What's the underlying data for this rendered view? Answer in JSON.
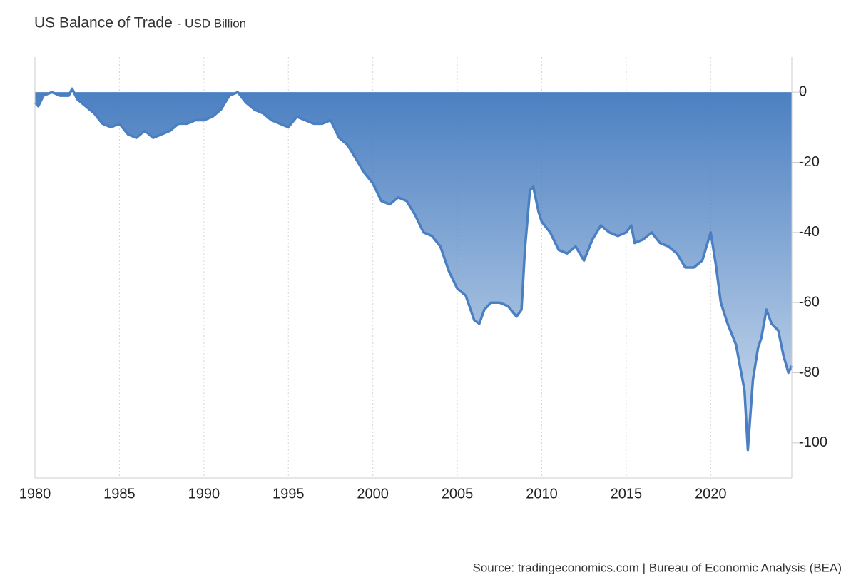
{
  "chart_data": {
    "type": "area",
    "title": "US Balance of Trade",
    "subtitle": "- USD Billion",
    "source": "Source: tradingeconomics.com | Bureau of Economic Analysis (BEA)",
    "color": "#4a7fc1",
    "xlim": [
      1980,
      2024.8
    ],
    "xticks": [
      1980,
      1985,
      1990,
      1995,
      2000,
      2005,
      2010,
      2015,
      2020
    ],
    "ylim": [
      -110,
      10
    ],
    "yticks": [
      0,
      -20,
      -40,
      -60,
      -80,
      -100
    ],
    "grid": true,
    "x": [
      1980.0,
      1980.2,
      1980.5,
      1981,
      1981.5,
      1982,
      1982.2,
      1982.5,
      1983,
      1983.5,
      1984,
      1984.5,
      1985,
      1985.5,
      1986,
      1986.5,
      1987,
      1987.5,
      1988,
      1988.5,
      1989,
      1989.5,
      1990,
      1990.5,
      1991,
      1991.5,
      1992,
      1992.5,
      1993,
      1993.5,
      1994,
      1994.5,
      1995,
      1995.5,
      1996,
      1996.5,
      1997,
      1997.5,
      1998,
      1998.5,
      1999,
      1999.5,
      2000,
      2000.5,
      2001,
      2001.5,
      2002,
      2002.5,
      2003,
      2003.5,
      2004,
      2004.5,
      2005,
      2005.5,
      2006,
      2006.3,
      2006.6,
      2007,
      2007.5,
      2008,
      2008.5,
      2008.8,
      2009,
      2009.3,
      2009.5,
      2009.8,
      2010,
      2010.5,
      2011,
      2011.5,
      2012,
      2012.5,
      2013,
      2013.5,
      2014,
      2014.5,
      2015,
      2015.3,
      2015.5,
      2016,
      2016.5,
      2017,
      2017.5,
      2018,
      2018.5,
      2019,
      2019.5,
      2020,
      2020.3,
      2020.6,
      2021,
      2021.5,
      2022,
      2022.2,
      2022.5,
      2022.8,
      2023,
      2023.3,
      2023.6,
      2024,
      2024.3,
      2024.6,
      2024.8
    ],
    "values": [
      -3,
      -4,
      -1,
      0,
      -1,
      -1,
      1,
      -2,
      -4,
      -6,
      -9,
      -10,
      -9,
      -12,
      -13,
      -11,
      -13,
      -12,
      -11,
      -9,
      -9,
      -8,
      -8,
      -7,
      -5,
      -1,
      0,
      -3,
      -5,
      -6,
      -8,
      -9,
      -10,
      -7,
      -8,
      -9,
      -9,
      -8,
      -13,
      -15,
      -19,
      -23,
      -26,
      -31,
      -32,
      -30,
      -31,
      -35,
      -40,
      -41,
      -44,
      -51,
      -56,
      -58,
      -65,
      -66,
      -62,
      -60,
      -60,
      -61,
      -64,
      -62,
      -45,
      -28,
      -27,
      -34,
      -37,
      -40,
      -45,
      -46,
      -44,
      -48,
      -42,
      -38,
      -40,
      -41,
      -40,
      -38,
      -43,
      -42,
      -40,
      -43,
      -44,
      -46,
      -50,
      -50,
      -48,
      -40,
      -49,
      -60,
      -66,
      -72,
      -85,
      -102,
      -82,
      -73,
      -70,
      -62,
      -66,
      -68,
      -75,
      -80,
      -78
    ]
  }
}
